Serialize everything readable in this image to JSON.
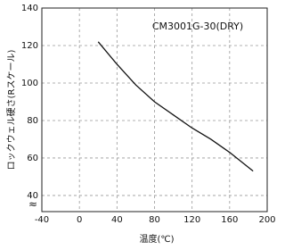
{
  "chart_data": {
    "type": "line",
    "annotation": "CM3001G-30(DRY)",
    "x_label": "温度(℃)",
    "y_label": "ロックウェル硬さ(Rスケール)",
    "y_break_mark": "≈",
    "x": [
      20,
      40,
      60,
      80,
      100,
      120,
      140,
      160,
      185
    ],
    "series": [
      {
        "color": "#111111",
        "values": [
          122,
          110,
          99,
          90,
          83,
          76,
          70,
          63,
          53
        ]
      }
    ],
    "xlim": [
      -40,
      200
    ],
    "xticks": [
      -40,
      0,
      40,
      80,
      120,
      160,
      200
    ],
    "ylim": [
      31.4,
      140
    ],
    "yticks": [
      40,
      60,
      80,
      100,
      120,
      140
    ],
    "grid": true
  }
}
